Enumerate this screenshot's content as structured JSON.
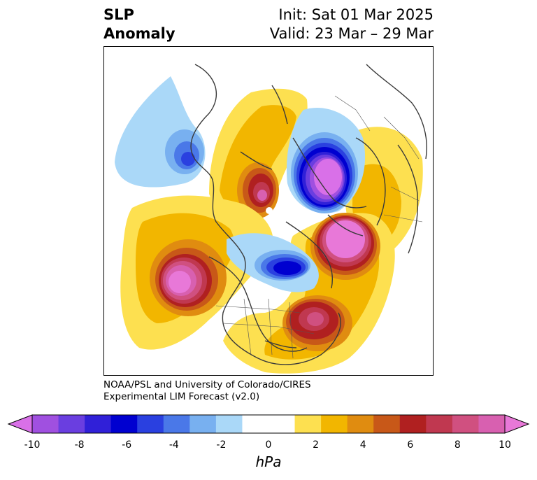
{
  "title": {
    "left_line1": "SLP",
    "left_line2": "Anomaly",
    "right_line1": "Init: Sat 01 Mar 2025",
    "right_line2": "Valid: 23 Mar – 29 Mar"
  },
  "credit": {
    "line1": "NOAA/PSL and University of Colorado/CIRES",
    "line2": "Experimental LIM Forecast (v2.0)"
  },
  "colorbar": {
    "unit_label": "hPa",
    "tick_labels": [
      "-10",
      "-8",
      "-6",
      "-4",
      "-2",
      "0",
      "2",
      "4",
      "6",
      "8",
      "10"
    ],
    "colors": [
      "#d970e8",
      "#a050e0",
      "#6a3ee0",
      "#3020d8",
      "#0000d0",
      "#2a40e0",
      "#4a78e8",
      "#78b0f0",
      "#aad8f8",
      "#ffffff",
      "#ffffff",
      "#fde050",
      "#f2b600",
      "#e08c10",
      "#c85818",
      "#b02020",
      "#c03850",
      "#d05080",
      "#d860b0",
      "#e878d8"
    ]
  },
  "map": {
    "projection": "north-polar-stereographic",
    "variable": "Sea level pressure anomaly",
    "features": [
      {
        "name": "negative-anomaly-north-america",
        "sign": "negative",
        "peak": "-6 hPa"
      },
      {
        "name": "negative-anomaly-eurasia-arctic",
        "sign": "negative",
        "peak": "-10 hPa"
      },
      {
        "name": "negative-anomaly-alaska-siberia",
        "sign": "negative",
        "peak": "-6 hPa"
      },
      {
        "name": "positive-anomaly-north-pacific",
        "sign": "positive",
        "peak": "10 hPa"
      },
      {
        "name": "positive-anomaly-north-atlantic",
        "sign": "positive",
        "peak": "10 hPa"
      },
      {
        "name": "positive-anomaly-europe",
        "sign": "positive",
        "peak": "10 hPa"
      },
      {
        "name": "positive-anomaly-east-siberia",
        "sign": "positive",
        "peak": "8 hPa"
      }
    ]
  }
}
